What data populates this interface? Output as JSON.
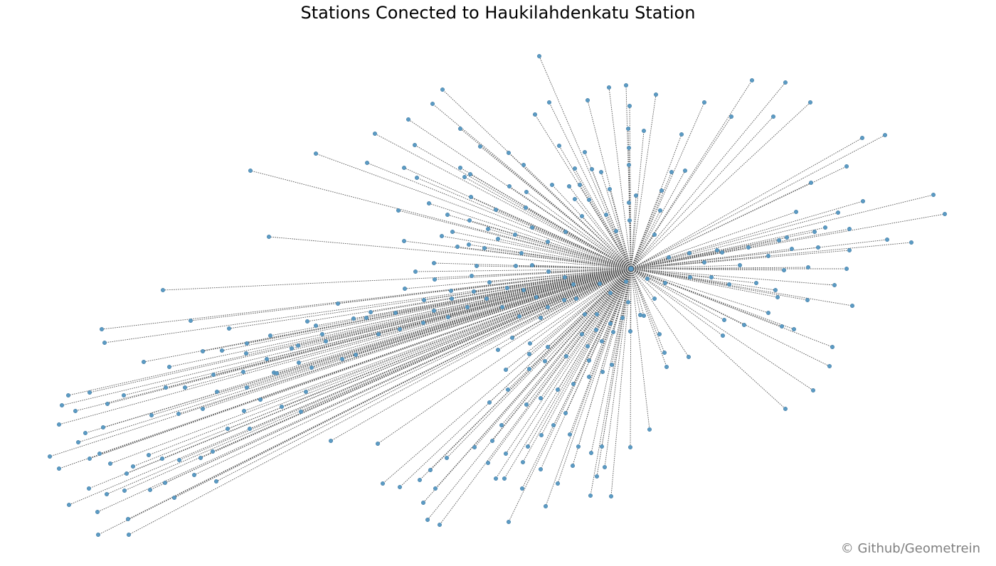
{
  "title": "Stations Conected to Haukilahdenkatu Station",
  "credit": "© Github/Geometrein",
  "colors": {
    "node": "#5b9bc4",
    "node_edge": "#3d6f94",
    "edge": "#555555",
    "background": "#ffffff"
  },
  "network": {
    "hub_count": 1,
    "connected_station_count": 320
  }
}
